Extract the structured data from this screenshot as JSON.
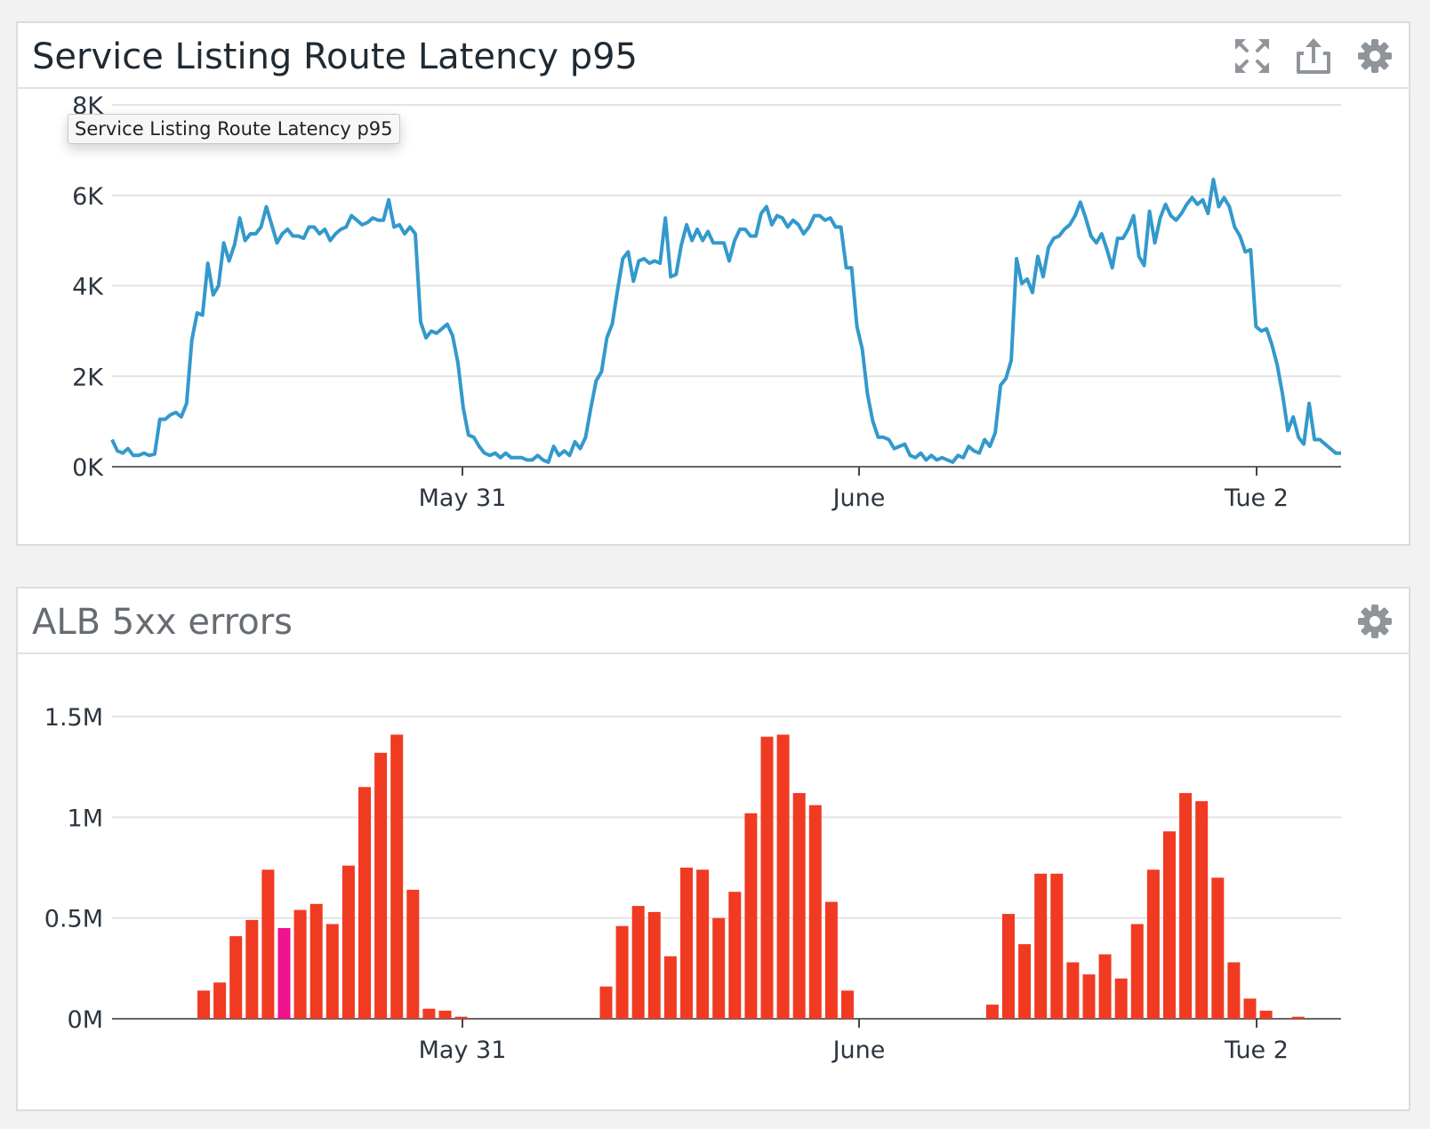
{
  "widgets": [
    {
      "title": "Service Listing Route Latency p95",
      "tooltip": "Service Listing Route Latency p95",
      "tools": [
        "expand-icon",
        "export-icon",
        "gear-icon"
      ]
    },
    {
      "title": "ALB 5xx errors",
      "tools": [
        "gear-icon"
      ]
    }
  ],
  "chart_data": [
    {
      "type": "line",
      "title": "Service Listing Route Latency p95",
      "x_ticks": [
        "May 31",
        "June",
        "Tue 2"
      ],
      "y_ticks": [
        "0K",
        "2K",
        "4K",
        "6K",
        "8K"
      ],
      "ylim": [
        0,
        8000
      ],
      "grid": true,
      "color": "#3399cc",
      "x_unit_note": "",
      "series": [
        {
          "name": "",
          "values": [
            600,
            350,
            300,
            400,
            250,
            250,
            300,
            250,
            280,
            1050,
            1050,
            1150,
            1200,
            1100,
            1400,
            2800,
            3400,
            3350,
            4500,
            3800,
            4000,
            4950,
            4550,
            4900,
            5500,
            5000,
            5150,
            5150,
            5300,
            5750,
            5350,
            4950,
            5150,
            5250,
            5100,
            5100,
            5050,
            5300,
            5300,
            5150,
            5250,
            5000,
            5150,
            5250,
            5300,
            5550,
            5450,
            5350,
            5400,
            5500,
            5450,
            5450,
            5900,
            5300,
            5350,
            5150,
            5300,
            5150,
            3200,
            2850,
            3000,
            2950,
            3050,
            3150,
            2900,
            2300,
            1300,
            700,
            650,
            450,
            300,
            250,
            300,
            200,
            300,
            200,
            200,
            200,
            150,
            150,
            250,
            150,
            100,
            450,
            250,
            350,
            250,
            550,
            400,
            650,
            1300,
            1900,
            2100,
            2850,
            3150,
            3900,
            4600,
            4750,
            4100,
            4550,
            4600,
            4500,
            4550,
            4500,
            5500,
            4200,
            4250,
            4900,
            5350,
            5000,
            5250,
            5000,
            5200,
            4950,
            4950,
            4950,
            4550,
            5000,
            5250,
            5250,
            5100,
            5100,
            5600,
            5750,
            5350,
            5550,
            5500,
            5300,
            5450,
            5350,
            5150,
            5300,
            5550,
            5550,
            5450,
            5500,
            5300,
            5300,
            4400,
            4400,
            3100,
            2600,
            1600,
            1000,
            650,
            650,
            600,
            400,
            450,
            500,
            250,
            200,
            300,
            150,
            250,
            150,
            200,
            150,
            100,
            250,
            200,
            450,
            350,
            300,
            600,
            450,
            750,
            1800,
            1950,
            2350,
            4600,
            4050,
            4150,
            3850,
            4650,
            4200,
            4850,
            5050,
            5100,
            5250,
            5350,
            5550,
            5850,
            5500,
            5100,
            4950,
            5150,
            4800,
            4400,
            5050,
            5050,
            5250,
            5550,
            4650,
            4450,
            5650,
            4950,
            5500,
            5800,
            5550,
            5450,
            5600,
            5800,
            5950,
            5800,
            5900,
            5600,
            6350,
            5750,
            5950,
            5750,
            5300,
            5100,
            4750,
            4800,
            3100,
            3000,
            3050,
            2700,
            2250,
            1600,
            800,
            1100,
            650,
            500,
            1400,
            600,
            600,
            500,
            400,
            300,
            300
          ]
        }
      ]
    },
    {
      "type": "bar",
      "title": "ALB 5xx errors",
      "x_ticks": [
        "May 31",
        "June",
        "Tue 2"
      ],
      "y_ticks": [
        "0M",
        "0.5M",
        "1M",
        "1.5M"
      ],
      "ylim": [
        0,
        1500000
      ],
      "grid": true,
      "color": "#f03a22",
      "highlight_color": "#f0118c",
      "highlight_index": 5,
      "values": [
        140000,
        180000,
        410000,
        490000,
        740000,
        450000,
        540000,
        570000,
        470000,
        760000,
        1150000,
        1320000,
        1410000,
        640000,
        50000,
        40000,
        10000,
        0,
        0,
        0,
        0,
        0,
        0,
        0,
        0,
        160000,
        460000,
        560000,
        530000,
        310000,
        750000,
        740000,
        500000,
        630000,
        1020000,
        1400000,
        1410000,
        1120000,
        1060000,
        580000,
        140000,
        0,
        0,
        0,
        0,
        0,
        0,
        0,
        0,
        70000,
        520000,
        370000,
        720000,
        720000,
        280000,
        220000,
        320000,
        200000,
        470000,
        740000,
        930000,
        1120000,
        1080000,
        700000,
        280000,
        100000,
        40000,
        0,
        10000
      ]
    }
  ]
}
